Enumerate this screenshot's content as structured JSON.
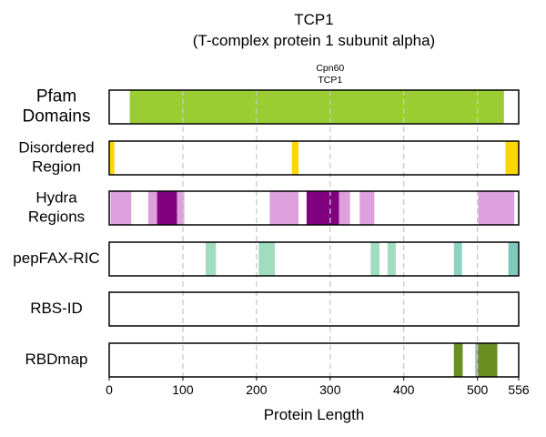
{
  "chart_data": {
    "type": "bar",
    "title": "TCP1",
    "subtitle": "(T-complex protein 1 subunit alpha)",
    "xlabel": "Protein Length",
    "xlim": [
      0,
      556
    ],
    "xticks": [
      0,
      100,
      200,
      300,
      400,
      500,
      556
    ],
    "gridlines": [
      100,
      200,
      300,
      400,
      500
    ],
    "grid": "vertical dashed",
    "annotation": {
      "lines": [
        "Cpn60",
        "TCP1"
      ],
      "x": 300
    },
    "tracks": [
      {
        "label_lines": [
          "Pfam",
          "Domains"
        ],
        "large": true,
        "segments": [
          {
            "start": 28,
            "end": 536,
            "color": "#9ACD32"
          }
        ]
      },
      {
        "label_lines": [
          "Disordered",
          "Region"
        ],
        "large": false,
        "segments": [
          {
            "start": 0,
            "end": 7,
            "color": "#FFD700"
          },
          {
            "start": 248,
            "end": 257,
            "color": "#FFD700"
          },
          {
            "start": 538,
            "end": 556,
            "color": "#FFD700"
          }
        ]
      },
      {
        "label_lines": [
          "Hydra",
          "Regions"
        ],
        "large": false,
        "segments": [
          {
            "start": 2,
            "end": 30,
            "color": "#DDA0DD"
          },
          {
            "start": 53,
            "end": 65,
            "color": "#DDA0DD"
          },
          {
            "start": 65,
            "end": 92,
            "color": "#800080"
          },
          {
            "start": 92,
            "end": 102,
            "color": "#DDA0DD"
          },
          {
            "start": 218,
            "end": 257,
            "color": "#DDA0DD"
          },
          {
            "start": 268,
            "end": 312,
            "color": "#800080"
          },
          {
            "start": 312,
            "end": 327,
            "color": "#DDA0DD"
          },
          {
            "start": 340,
            "end": 360,
            "color": "#DDA0DD"
          },
          {
            "start": 501,
            "end": 550,
            "color": "#DDA0DD"
          }
        ]
      },
      {
        "label_lines": [
          "pepFAX-RIC"
        ],
        "large": false,
        "segments": [
          {
            "start": 131,
            "end": 145,
            "color": "#A0DCBE"
          },
          {
            "start": 203,
            "end": 225,
            "color": "#A0DCBE"
          },
          {
            "start": 355,
            "end": 367,
            "color": "#A0DCBE"
          },
          {
            "start": 378,
            "end": 389,
            "color": "#A0DCBE"
          },
          {
            "start": 468,
            "end": 479,
            "color": "#8CD2C3"
          },
          {
            "start": 542,
            "end": 556,
            "color": "#80C8BC"
          }
        ]
      },
      {
        "label_lines": [
          "RBS-ID"
        ],
        "large": false,
        "segments": []
      },
      {
        "label_lines": [
          "RBDmap"
        ],
        "large": false,
        "segments": [
          {
            "start": 468,
            "end": 480,
            "color": "#6B8E23"
          },
          {
            "start": 497,
            "end": 500,
            "color": "#9AB8C0"
          },
          {
            "start": 500,
            "end": 527,
            "color": "#6B8E23"
          }
        ]
      }
    ]
  }
}
